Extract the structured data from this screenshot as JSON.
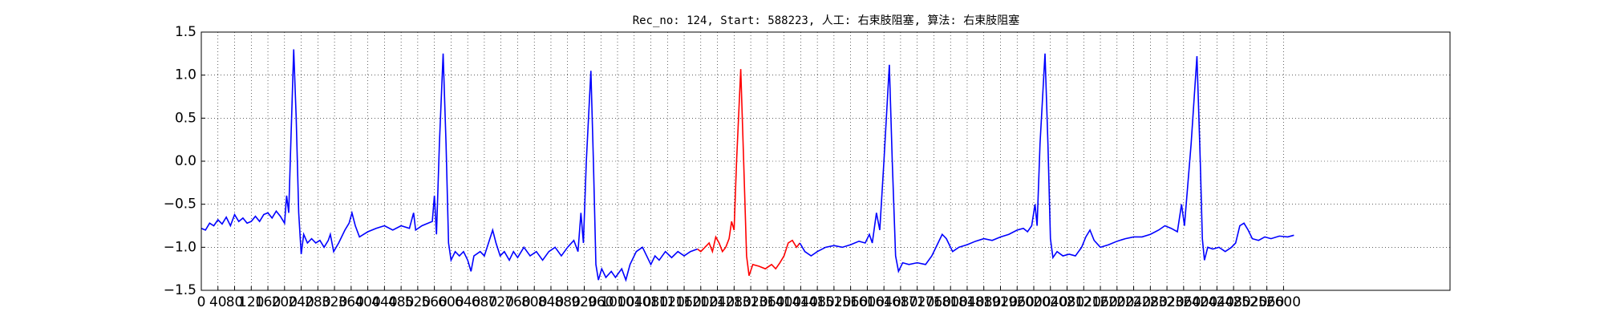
{
  "chart_data": {
    "type": "line",
    "title": "Rec_no: 124, Start: 588223, 人工: 右束肢阻塞, 算法: 右束肢阻塞",
    "grid": true,
    "xlim": [
      0,
      3000
    ],
    "xticks": [
      0,
      40,
      80,
      120,
      160,
      200,
      240,
      280,
      320,
      360,
      400,
      440,
      480,
      520,
      560,
      600,
      640,
      680,
      720,
      760,
      800,
      840,
      880,
      920,
      960,
      1000,
      1040,
      1080,
      1120,
      1160,
      1200,
      1240,
      1280,
      1320,
      1360,
      1400,
      1440,
      1480,
      1520,
      1560,
      1600,
      1640,
      1680,
      1720,
      1760,
      1800,
      1840,
      1880,
      1920,
      1960,
      2000,
      2040,
      2080,
      2120,
      2160,
      2200,
      2240,
      2280,
      2320,
      2360,
      2400,
      2440,
      2480,
      2520,
      2560,
      2600
    ],
    "ylim": [
      -1.5,
      1.5
    ],
    "yticks": [
      {
        "value": -1.5,
        "label": "−1.5"
      },
      {
        "value": -1.0,
        "label": "−1.0"
      },
      {
        "value": -0.5,
        "label": "−0.5"
      },
      {
        "value": 0,
        "label": "0.0"
      },
      0.5,
      {
        "value": 1.0,
        "label": "1.0"
      },
      1.5
    ],
    "series": [
      {
        "color": "#0000ff",
        "x": [
          0,
          10,
          20,
          30,
          40,
          50,
          60,
          70,
          80,
          90,
          100,
          110,
          120,
          130,
          140,
          150,
          160,
          170,
          180,
          190,
          200,
          205,
          210,
          215,
          222,
          228,
          234,
          240,
          246,
          255,
          265,
          275,
          285,
          295,
          305,
          310,
          318,
          330,
          345,
          355,
          362,
          370,
          380,
          390,
          400,
          420,
          440,
          460,
          480,
          500,
          510,
          515,
          530,
          545,
          555,
          560,
          565,
          572,
          581,
          588,
          594,
          600,
          610,
          620,
          630,
          640,
          648,
          655,
          670,
          680,
          690,
          700,
          708,
          718,
          728,
          740,
          750,
          760,
          775,
          790,
          805,
          820,
          835,
          850,
          865,
          880,
          895,
          905,
          912,
          918,
          925,
          936,
          942,
          948,
          954,
          962,
          972,
          985,
          995,
          1010,
          1020,
          1030,
          1045,
          1060,
          1070,
          1080,
          1090,
          1100,
          1115,
          1130,
          1145,
          1160,
          1175,
          1192
        ],
        "values": [
          -0.78,
          -0.8,
          -0.72,
          -0.75,
          -0.68,
          -0.73,
          -0.65,
          -0.75,
          -0.62,
          -0.7,
          -0.66,
          -0.72,
          -0.7,
          -0.64,
          -0.7,
          -0.62,
          -0.6,
          -0.66,
          -0.58,
          -0.64,
          -0.72,
          -0.4,
          -0.6,
          0.2,
          1.3,
          0.5,
          -0.6,
          -1.08,
          -0.85,
          -0.95,
          -0.9,
          -0.95,
          -0.92,
          -1.0,
          -0.92,
          -0.85,
          -1.05,
          -0.95,
          -0.8,
          -0.72,
          -0.6,
          -0.75,
          -0.88,
          -0.85,
          -0.82,
          -0.78,
          -0.75,
          -0.8,
          -0.75,
          -0.78,
          -0.6,
          -0.8,
          -0.75,
          -0.72,
          -0.7,
          -0.4,
          -0.85,
          0.2,
          1.25,
          0.2,
          -0.95,
          -1.15,
          -1.05,
          -1.1,
          -1.05,
          -1.15,
          -1.28,
          -1.1,
          -1.05,
          -1.1,
          -0.95,
          -0.8,
          -0.95,
          -1.1,
          -1.05,
          -1.15,
          -1.05,
          -1.12,
          -1.0,
          -1.1,
          -1.05,
          -1.15,
          -1.05,
          -1.0,
          -1.1,
          -1.0,
          -0.92,
          -1.05,
          -0.6,
          -0.95,
          0.0,
          1.05,
          0.0,
          -1.2,
          -1.38,
          -1.25,
          -1.35,
          -1.28,
          -1.35,
          -1.25,
          -1.38,
          -1.2,
          -1.05,
          -1.0,
          -1.1,
          -1.2,
          -1.1,
          -1.15,
          -1.05,
          -1.12,
          -1.05,
          -1.1,
          -1.05,
          -1.02
        ]
      },
      {
        "color": "#ff0000",
        "x": [
          1192,
          1200,
          1210,
          1220,
          1228,
          1236,
          1244,
          1252,
          1260,
          1268,
          1274,
          1280,
          1286,
          1296,
          1303,
          1310,
          1316,
          1325,
          1340,
          1355,
          1370,
          1380,
          1390,
          1400,
          1410,
          1420,
          1430,
          1438
        ],
        "values": [
          -1.02,
          -1.05,
          -1.0,
          -0.95,
          -1.05,
          -0.88,
          -0.95,
          -1.05,
          -1.0,
          -0.9,
          -0.7,
          -0.8,
          0.0,
          1.07,
          0.0,
          -1.1,
          -1.33,
          -1.2,
          -1.22,
          -1.25,
          -1.2,
          -1.25,
          -1.18,
          -1.1,
          -0.95,
          -0.92,
          -1.0,
          -0.95
        ]
      },
      {
        "color": "#0000ff",
        "x": [
          1438,
          1450,
          1465,
          1480,
          1500,
          1520,
          1540,
          1560,
          1580,
          1595,
          1605,
          1612,
          1622,
          1630,
          1640,
          1653,
          1660,
          1668,
          1675,
          1685,
          1700,
          1720,
          1740,
          1755,
          1770,
          1780,
          1790,
          1805,
          1820,
          1840,
          1860,
          1880,
          1900,
          1920,
          1940,
          1960,
          1975,
          1985,
          1995,
          2003,
          2008,
          2015,
          2027,
          2034,
          2040,
          2046,
          2056,
          2070,
          2085,
          2100,
          2115,
          2125,
          2135,
          2145,
          2160,
          2180,
          2200,
          2220,
          2240,
          2260,
          2280,
          2300,
          2315,
          2330,
          2345,
          2355,
          2362,
          2378,
          2392,
          2400,
          2405,
          2410,
          2418,
          2430,
          2445,
          2460,
          2475,
          2485,
          2495,
          2505,
          2515,
          2525,
          2540,
          2555,
          2570,
          2590,
          2610,
          2625
        ],
        "values": [
          -0.95,
          -1.05,
          -1.1,
          -1.05,
          -1.0,
          -0.98,
          -1.0,
          -0.97,
          -0.93,
          -0.95,
          -0.85,
          -0.95,
          -0.6,
          -0.8,
          0.0,
          1.12,
          0.0,
          -1.1,
          -1.28,
          -1.18,
          -1.2,
          -1.18,
          -1.2,
          -1.1,
          -0.95,
          -0.85,
          -0.9,
          -1.05,
          -1.0,
          -0.97,
          -0.93,
          -0.9,
          -0.92,
          -0.88,
          -0.85,
          -0.8,
          -0.78,
          -0.82,
          -0.75,
          -0.5,
          -0.75,
          0.2,
          1.25,
          0.2,
          -0.9,
          -1.12,
          -1.05,
          -1.1,
          -1.08,
          -1.1,
          -1.0,
          -0.88,
          -0.8,
          -0.92,
          -1.0,
          -0.97,
          -0.93,
          -0.9,
          -0.88,
          -0.88,
          -0.85,
          -0.8,
          -0.75,
          -0.78,
          -0.82,
          -0.5,
          -0.75,
          0.2,
          1.22,
          0.0,
          -0.9,
          -1.15,
          -1.0,
          -1.02,
          -1.0,
          -1.05,
          -1.0,
          -0.95,
          -0.75,
          -0.72,
          -0.8,
          -0.9,
          -0.92,
          -0.88,
          -0.9,
          -0.87,
          -0.88,
          -0.86
        ]
      }
    ]
  }
}
